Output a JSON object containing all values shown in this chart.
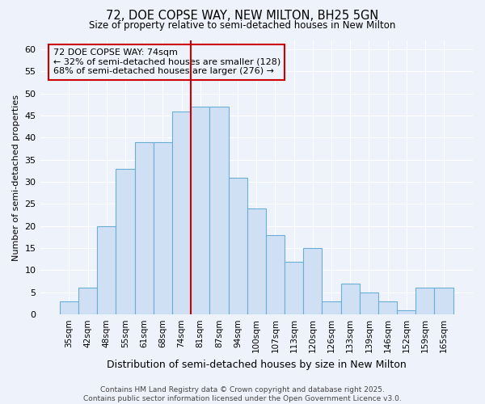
{
  "title1": "72, DOE COPSE WAY, NEW MILTON, BH25 5GN",
  "title2": "Size of property relative to semi-detached houses in New Milton",
  "xlabel": "Distribution of semi-detached houses by size in New Milton",
  "ylabel": "Number of semi-detached properties",
  "categories": [
    "35sqm",
    "42sqm",
    "48sqm",
    "55sqm",
    "61sqm",
    "68sqm",
    "74sqm",
    "81sqm",
    "87sqm",
    "94sqm",
    "100sqm",
    "107sqm",
    "113sqm",
    "120sqm",
    "126sqm",
    "133sqm",
    "139sqm",
    "146sqm",
    "152sqm",
    "159sqm",
    "165sqm"
  ],
  "values": [
    3,
    6,
    20,
    33,
    39,
    39,
    46,
    47,
    47,
    31,
    24,
    18,
    12,
    15,
    3,
    7,
    5,
    3,
    1,
    6,
    6
  ],
  "bar_color": "#cfe0f5",
  "bar_edge_color": "#6aaed6",
  "vline_color": "#cc0000",
  "annotation_title": "72 DOE COPSE WAY: 74sqm",
  "annotation_line1": "← 32% of semi-detached houses are smaller (128)",
  "annotation_line2": "68% of semi-detached houses are larger (276) →",
  "annotation_box_color": "#cc0000",
  "ylim": [
    0,
    62
  ],
  "yticks": [
    0,
    5,
    10,
    15,
    20,
    25,
    30,
    35,
    40,
    45,
    50,
    55,
    60
  ],
  "background_color": "#eef3fb",
  "grid_color": "#ffffff",
  "footer1": "Contains HM Land Registry data © Crown copyright and database right 2025.",
  "footer2": "Contains public sector information licensed under the Open Government Licence v3.0."
}
